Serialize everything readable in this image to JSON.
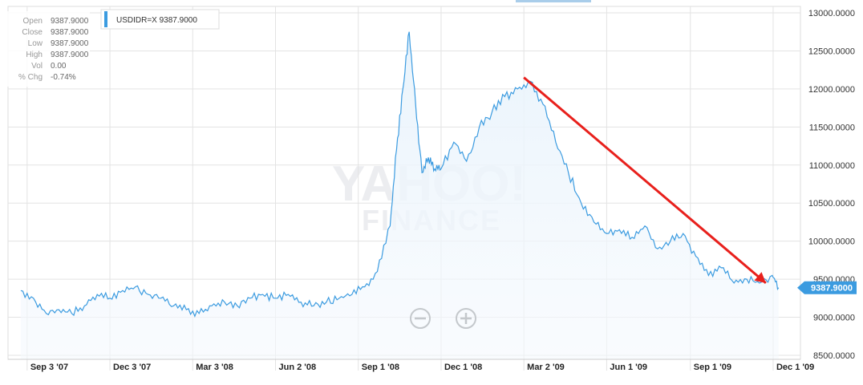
{
  "chart_data": {
    "type": "area",
    "symbol": "USDIDR=X",
    "legend_text": "USDIDR=X 9387.9000",
    "ohlc": [
      {
        "key": "Open",
        "value": "9387.9000"
      },
      {
        "key": "Close",
        "value": "9387.9000"
      },
      {
        "key": "Low",
        "value": "9387.9000"
      },
      {
        "key": "High",
        "value": "9387.9000"
      },
      {
        "key": "Vol",
        "value": "0.00"
      },
      {
        "key": "% Chg",
        "value": "-0.74%"
      }
    ],
    "current_value_label": "9387.9000",
    "current_value": 9387.9,
    "ylim": [
      8500,
      13000
    ],
    "y_ticks": [
      8500,
      9000,
      9500,
      10000,
      10500,
      11000,
      11500,
      12000,
      12500,
      13000
    ],
    "y_tick_labels": [
      "8500.0000",
      "9000.0000",
      "9500.0000",
      "10000.0000",
      "10500.0000",
      "11000.0000",
      "11500.0000",
      "12000.0000",
      "12500.0000",
      "13000.0000"
    ],
    "x_tick_labels": [
      "Sep 3 '07",
      "Dec 3 '07",
      "Mar 3 '08",
      "Jun 2 '08",
      "Sep 1 '08",
      "Dec 1 '08",
      "Mar 2 '09",
      "Jun 1 '09",
      "Sep 1 '09",
      "Dec 1 '09"
    ],
    "x": [
      "2007-08-27",
      "2007-09-10",
      "2007-09-24",
      "2007-10-08",
      "2007-10-22",
      "2007-11-05",
      "2007-11-19",
      "2007-12-03",
      "2007-12-17",
      "2007-12-31",
      "2008-01-14",
      "2008-01-28",
      "2008-02-11",
      "2008-02-25",
      "2008-03-10",
      "2008-03-24",
      "2008-04-07",
      "2008-04-21",
      "2008-05-05",
      "2008-05-19",
      "2008-06-02",
      "2008-06-16",
      "2008-06-30",
      "2008-07-14",
      "2008-07-28",
      "2008-08-11",
      "2008-08-25",
      "2008-09-08",
      "2008-09-22",
      "2008-10-06",
      "2008-10-13",
      "2008-10-20",
      "2008-10-27",
      "2008-11-03",
      "2008-11-10",
      "2008-11-17",
      "2008-11-24",
      "2008-12-01",
      "2008-12-15",
      "2008-12-29",
      "2009-01-12",
      "2009-01-26",
      "2009-02-09",
      "2009-02-23",
      "2009-03-09",
      "2009-03-23",
      "2009-04-06",
      "2009-04-20",
      "2009-05-04",
      "2009-05-18",
      "2009-06-01",
      "2009-06-15",
      "2009-06-29",
      "2009-07-13",
      "2009-07-27",
      "2009-08-10",
      "2009-08-24",
      "2009-09-07",
      "2009-09-21",
      "2009-10-05",
      "2009-10-19",
      "2009-11-02",
      "2009-11-16",
      "2009-11-30",
      "2009-12-07"
    ],
    "values": [
      9350,
      9250,
      9050,
      9100,
      9050,
      9150,
      9300,
      9250,
      9350,
      9400,
      9300,
      9250,
      9150,
      9100,
      9050,
      9150,
      9200,
      9150,
      9250,
      9300,
      9250,
      9300,
      9200,
      9150,
      9200,
      9250,
      9300,
      9400,
      9600,
      10200,
      11200,
      12000,
      12750,
      11800,
      10900,
      11100,
      10950,
      10950,
      11300,
      11050,
      11500,
      11700,
      11900,
      12000,
      12100,
      11800,
      11300,
      10900,
      10500,
      10250,
      10100,
      10150,
      10050,
      10200,
      9900,
      10000,
      10100,
      9800,
      9550,
      9650,
      9450,
      9500,
      9450,
      9550,
      9388
    ],
    "annotations": [
      {
        "type": "arrow",
        "color": "#e8201c",
        "from": {
          "x": "2009-03-02",
          "y": 12150
        },
        "to": {
          "x": "2009-11-23",
          "y": 9450
        }
      }
    ],
    "watermark": {
      "line1": "YAHOO!",
      "line2": "FINANCE"
    },
    "series_color": "#3b9be0",
    "fill_color": "#e8f3fc",
    "grid": true,
    "legend": "top-left"
  }
}
